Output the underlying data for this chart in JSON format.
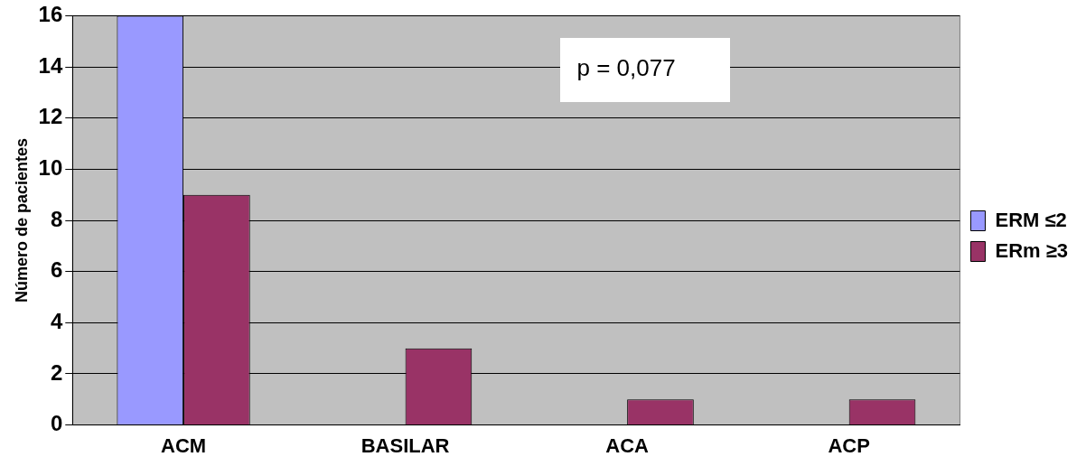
{
  "chart_data": {
    "type": "bar",
    "ylabel": "Número de pacientes",
    "categories": [
      "ACM",
      "BASILAR",
      "ACA",
      "ACP"
    ],
    "series": [
      {
        "name": "ERM ≤2",
        "color": "#9999ff",
        "values": [
          16,
          0,
          0,
          0
        ]
      },
      {
        "name": "ERm ≥3",
        "color": "#993366",
        "values": [
          9,
          3,
          1,
          1
        ]
      }
    ],
    "ylim": [
      0,
      16
    ],
    "yticks": [
      0,
      2,
      4,
      6,
      8,
      10,
      12,
      14,
      16
    ],
    "grid": "y",
    "legend": "right",
    "annotations": [
      "p = 0,077"
    ]
  }
}
